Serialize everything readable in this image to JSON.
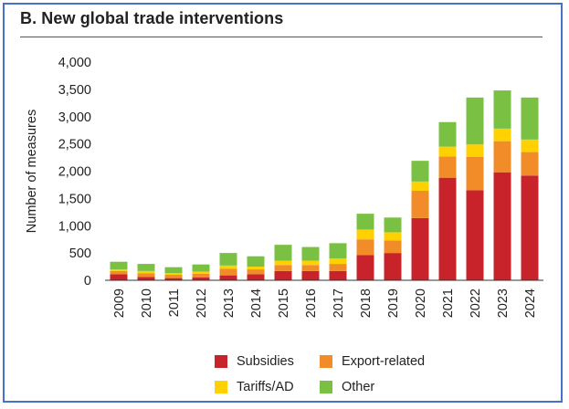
{
  "chart_data": {
    "type": "bar",
    "stacked": true,
    "title": "B. New global trade interventions",
    "ylabel": "Number of measures",
    "xlabel": "",
    "ylim": [
      0,
      4000
    ],
    "yticks": [
      0,
      500,
      1000,
      1500,
      2000,
      2500,
      3000,
      3500,
      4000
    ],
    "ytick_labels": [
      "0",
      "500",
      "1,000",
      "1,500",
      "2,000",
      "2,500",
      "3,000",
      "3,500",
      "4,000"
    ],
    "categories": [
      "2009",
      "2010",
      "2011",
      "2012",
      "2013",
      "2014",
      "2015",
      "2016",
      "2017",
      "2018",
      "2019",
      "2020",
      "2021",
      "2022",
      "2023",
      "2024"
    ],
    "series": [
      {
        "name": "Subsidies",
        "color": "#c8232b",
        "values": [
          110,
          60,
          40,
          50,
          90,
          110,
          170,
          170,
          170,
          460,
          500,
          1140,
          1880,
          1650,
          1980,
          1920
        ]
      },
      {
        "name": "Export-related",
        "color": "#f28c28",
        "values": [
          60,
          70,
          60,
          70,
          120,
          90,
          110,
          110,
          130,
          290,
          230,
          500,
          390,
          610,
          570,
          430
        ]
      },
      {
        "name": "Tariffs/AD",
        "color": "#ffd100",
        "values": [
          30,
          40,
          30,
          40,
          60,
          50,
          80,
          80,
          100,
          180,
          150,
          170,
          180,
          230,
          230,
          230
        ]
      },
      {
        "name": "Other",
        "color": "#7ac143",
        "values": [
          140,
          130,
          110,
          130,
          230,
          190,
          290,
          250,
          280,
          290,
          270,
          380,
          450,
          860,
          700,
          770
        ]
      }
    ],
    "legend_position": "bottom"
  }
}
